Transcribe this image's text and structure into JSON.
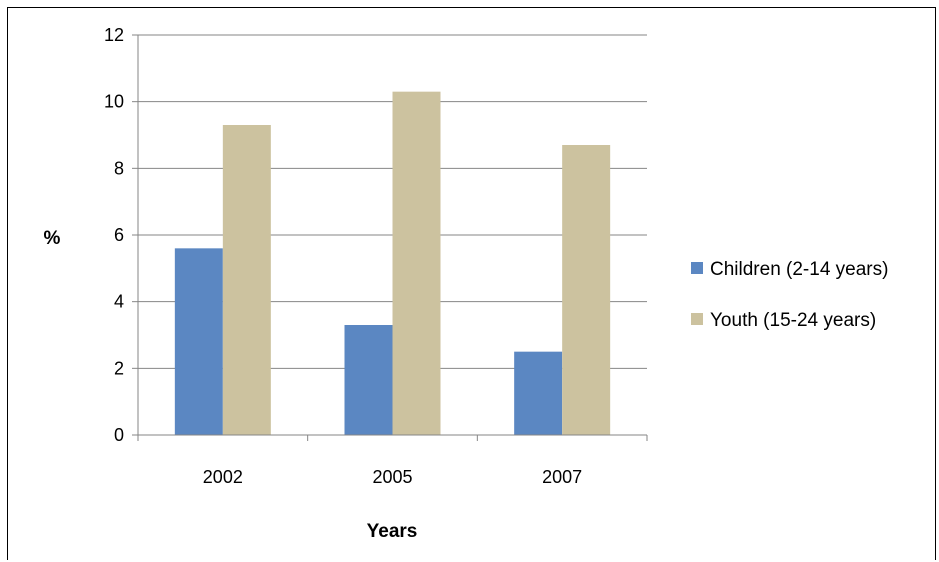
{
  "chart_data": {
    "type": "bar",
    "categories": [
      "2002",
      "2005",
      "2007"
    ],
    "series": [
      {
        "name": "Children (2-14 years)",
        "values": [
          5.6,
          3.3,
          2.5
        ],
        "color": "#5b87c2"
      },
      {
        "name": "Youth (15-24 years)",
        "values": [
          9.3,
          10.3,
          8.7
        ],
        "color": "#ccc29f"
      }
    ],
    "xlabel": "Years",
    "ylabel": "%",
    "ylim": [
      0,
      12
    ],
    "yticks": [
      "0",
      "2",
      "4",
      "6",
      "8",
      "10",
      "12"
    ],
    "grid": true,
    "legend_position": "right"
  }
}
